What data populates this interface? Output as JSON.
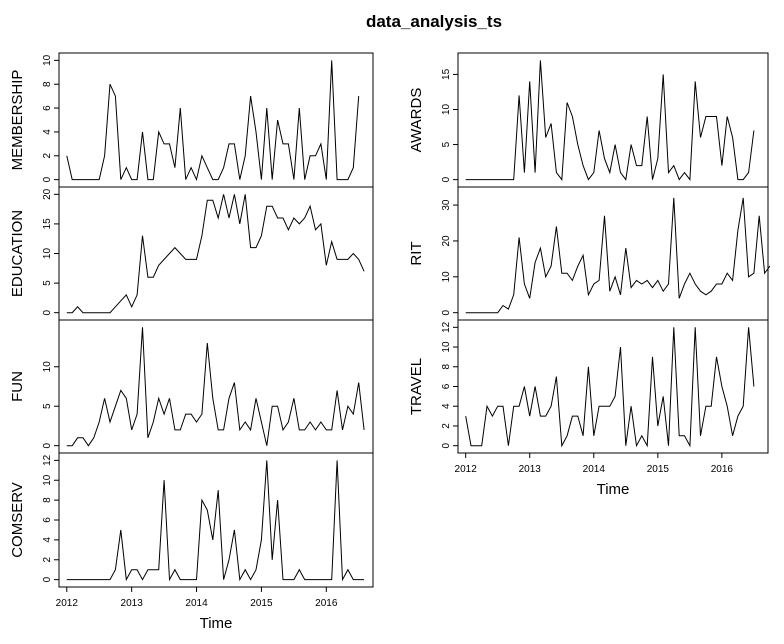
{
  "chart_data": {
    "type": "line",
    "title": "data_analysis_ts",
    "xlabel": "Time",
    "x_start": 2012.0,
    "frequency": 12,
    "xlim": [
      2011.88,
      2016.72
    ],
    "xticks": [
      2012,
      2013,
      2014,
      2015,
      2016
    ],
    "panels": [
      {
        "name": "MEMBERSHIP",
        "ylim": [
          0,
          10
        ],
        "yticks": [
          0,
          2,
          4,
          6,
          8,
          10
        ],
        "values": [
          2,
          0,
          0,
          0,
          0,
          0,
          0,
          2,
          8,
          7,
          0,
          1,
          0,
          0,
          4,
          0,
          0,
          4,
          3,
          3,
          1,
          6,
          0,
          1,
          0,
          2,
          1,
          0,
          0,
          1,
          3,
          3,
          0,
          2,
          7,
          4,
          0,
          6,
          0,
          5,
          3,
          3,
          0,
          6,
          0,
          2,
          2,
          3,
          0,
          10,
          0,
          0,
          0,
          1,
          7
        ]
      },
      {
        "name": "EDUCATION",
        "ylim": [
          0,
          20
        ],
        "yticks": [
          0,
          5,
          10,
          15,
          20
        ],
        "values": [
          0,
          0,
          1,
          0,
          0,
          0,
          0,
          0,
          0,
          1,
          2,
          3,
          1,
          3,
          13,
          6,
          6,
          8,
          9,
          10,
          11,
          10,
          9,
          9,
          9,
          13,
          19,
          19,
          16,
          20,
          16,
          20,
          15,
          20,
          11,
          11,
          13,
          18,
          18,
          16,
          16,
          14,
          16,
          15,
          16,
          18,
          14,
          15,
          8,
          12,
          9,
          9,
          9,
          10,
          9,
          7
        ]
      },
      {
        "name": "FUN",
        "ylim": [
          0,
          15
        ],
        "yticks": [
          0,
          5,
          10
        ],
        "values": [
          0,
          0,
          1,
          1,
          0,
          1,
          3,
          6,
          3,
          5,
          7,
          6,
          2,
          4,
          15,
          1,
          3,
          6,
          4,
          6,
          2,
          2,
          4,
          4,
          3,
          4,
          13,
          6,
          2,
          2,
          6,
          8,
          2,
          3,
          2,
          6,
          3,
          0,
          5,
          5,
          2,
          3,
          6,
          2,
          2,
          3,
          2,
          3,
          2,
          2,
          7,
          2,
          5,
          4,
          8,
          2
        ]
      },
      {
        "name": "COMSERV",
        "ylim": [
          0,
          12
        ],
        "yticks": [
          0,
          2,
          4,
          6,
          8,
          10,
          12
        ],
        "values": [
          0,
          0,
          0,
          0,
          0,
          0,
          0,
          0,
          0,
          1,
          5,
          0,
          1,
          1,
          0,
          1,
          1,
          1,
          10,
          0,
          1,
          0,
          0,
          0,
          0,
          8,
          7,
          4,
          9,
          0,
          2,
          5,
          0,
          1,
          0,
          1,
          4,
          12,
          2,
          8,
          0,
          0,
          0,
          1,
          0,
          0,
          0,
          0,
          0,
          0,
          12,
          0,
          1,
          0,
          0,
          0
        ]
      },
      {
        "name": "AWARDS",
        "ylim": [
          0,
          17
        ],
        "yticks": [
          0,
          5,
          10,
          15
        ],
        "values": [
          0,
          0,
          0,
          0,
          0,
          0,
          0,
          0,
          0,
          0,
          12,
          1,
          14,
          1,
          17,
          6,
          8,
          1,
          0,
          11,
          9,
          5,
          2,
          0,
          1,
          7,
          3,
          1,
          5,
          1,
          0,
          5,
          2,
          2,
          9,
          0,
          3,
          15,
          1,
          2,
          0,
          1,
          0,
          14,
          6,
          9,
          9,
          9,
          2,
          9,
          6,
          0,
          0,
          1,
          7
        ]
      },
      {
        "name": "RIT",
        "ylim": [
          0,
          33
        ],
        "yticks": [
          0,
          10,
          20,
          30
        ],
        "values": [
          0,
          0,
          0,
          0,
          0,
          0,
          0,
          2,
          1,
          5,
          21,
          8,
          4,
          14,
          18,
          10,
          13,
          24,
          11,
          11,
          9,
          13,
          16,
          5,
          8,
          9,
          27,
          6,
          10,
          5,
          18,
          7,
          9,
          8,
          9,
          7,
          9,
          6,
          8,
          32,
          4,
          8,
          11,
          8,
          6,
          5,
          6,
          8,
          8,
          11,
          9,
          23,
          32,
          10,
          11,
          27,
          11,
          13
        ]
      },
      {
        "name": "TRAVEL",
        "ylim": [
          0,
          12
        ],
        "yticks": [
          0,
          2,
          4,
          6,
          8,
          10,
          12
        ],
        "values": [
          3,
          0,
          0,
          0,
          4,
          3,
          4,
          4,
          0,
          4,
          4,
          6,
          3,
          6,
          3,
          3,
          4,
          7,
          0,
          1,
          3,
          3,
          1,
          8,
          1,
          4,
          4,
          4,
          5,
          10,
          0,
          4,
          0,
          1,
          0,
          9,
          2,
          5,
          0,
          12,
          1,
          1,
          0,
          12,
          1,
          4,
          4,
          9,
          6,
          4,
          1,
          3,
          4,
          12,
          6
        ]
      }
    ]
  }
}
